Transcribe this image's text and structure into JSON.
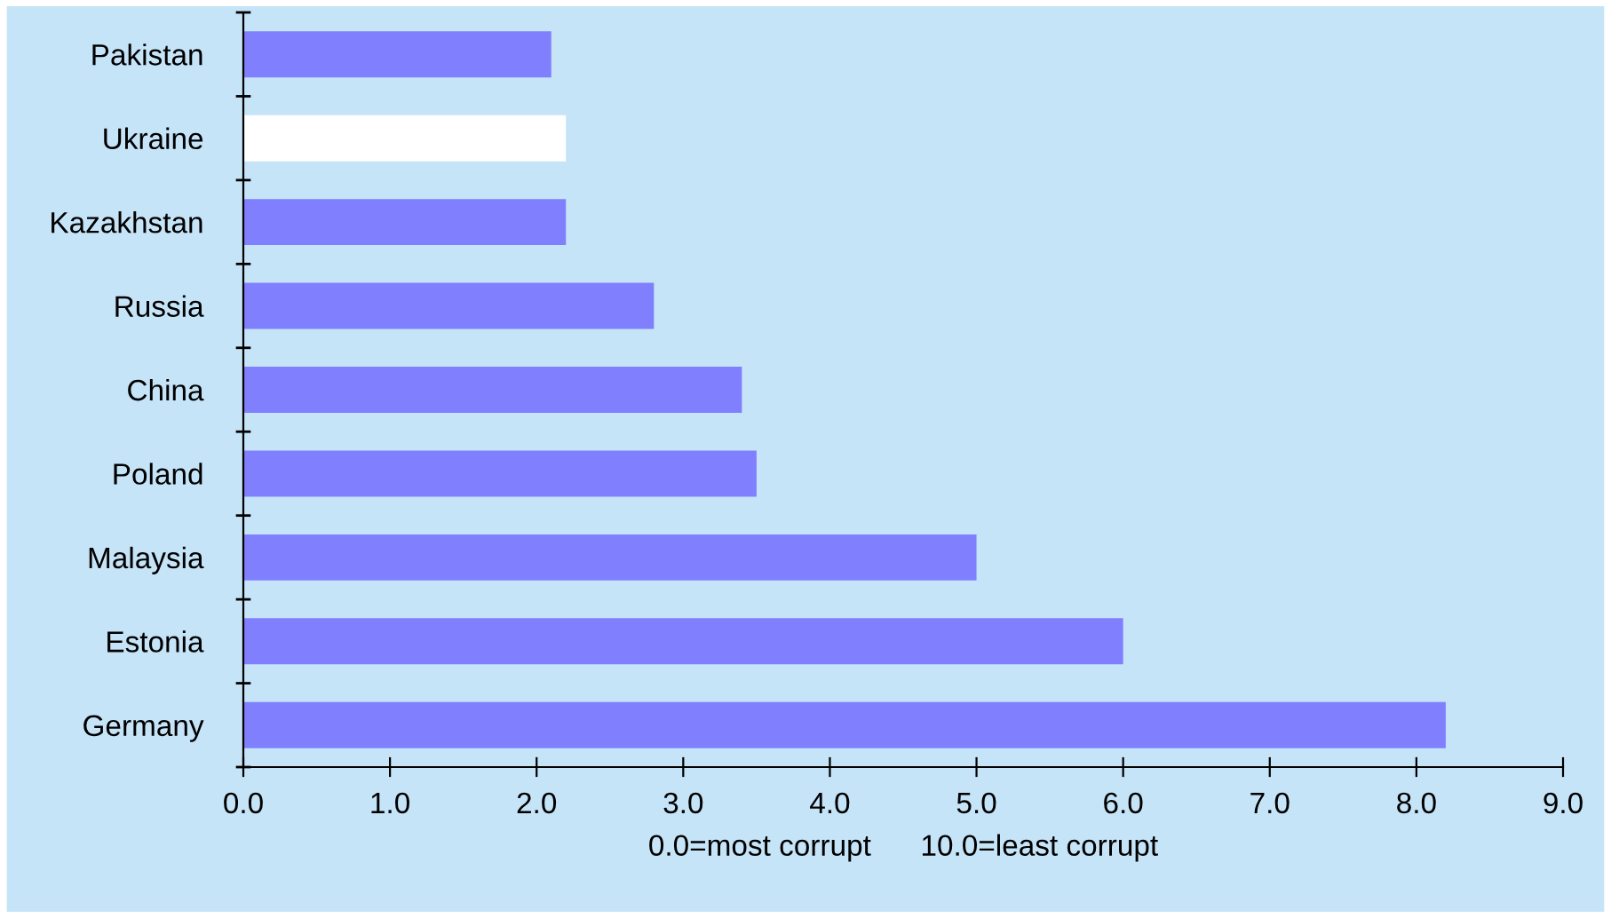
{
  "chart_data": {
    "type": "bar",
    "orientation": "horizontal",
    "categories": [
      "Pakistan",
      "Ukraine",
      "Kazakhstan",
      "Russia",
      "China",
      "Poland",
      "Malaysia",
      "Estonia",
      "Germany"
    ],
    "values": [
      2.1,
      2.2,
      2.2,
      2.8,
      3.4,
      3.5,
      5.0,
      6.0,
      8.2
    ],
    "colors": [
      "#8080ff",
      "#ffffff",
      "#8080ff",
      "#8080ff",
      "#8080ff",
      "#8080ff",
      "#8080ff",
      "#8080ff",
      "#8080ff"
    ],
    "xlabel": "0.0=most corrupt      10.0=least corrupt",
    "xlim": [
      0,
      9
    ],
    "xticks": [
      {
        "value": 0,
        "label": "0.0"
      },
      {
        "value": 1,
        "label": "1.0"
      },
      {
        "value": 2,
        "label": "2.0"
      },
      {
        "value": 3,
        "label": "3.0"
      },
      {
        "value": 4,
        "label": "4.0"
      },
      {
        "value": 5,
        "label": "5.0"
      },
      {
        "value": 6,
        "label": "6.0"
      },
      {
        "value": 7,
        "label": "7.0"
      },
      {
        "value": 8,
        "label": "8.0"
      },
      {
        "value": 9,
        "label": "9.0"
      }
    ],
    "grid": false,
    "legend": false
  }
}
